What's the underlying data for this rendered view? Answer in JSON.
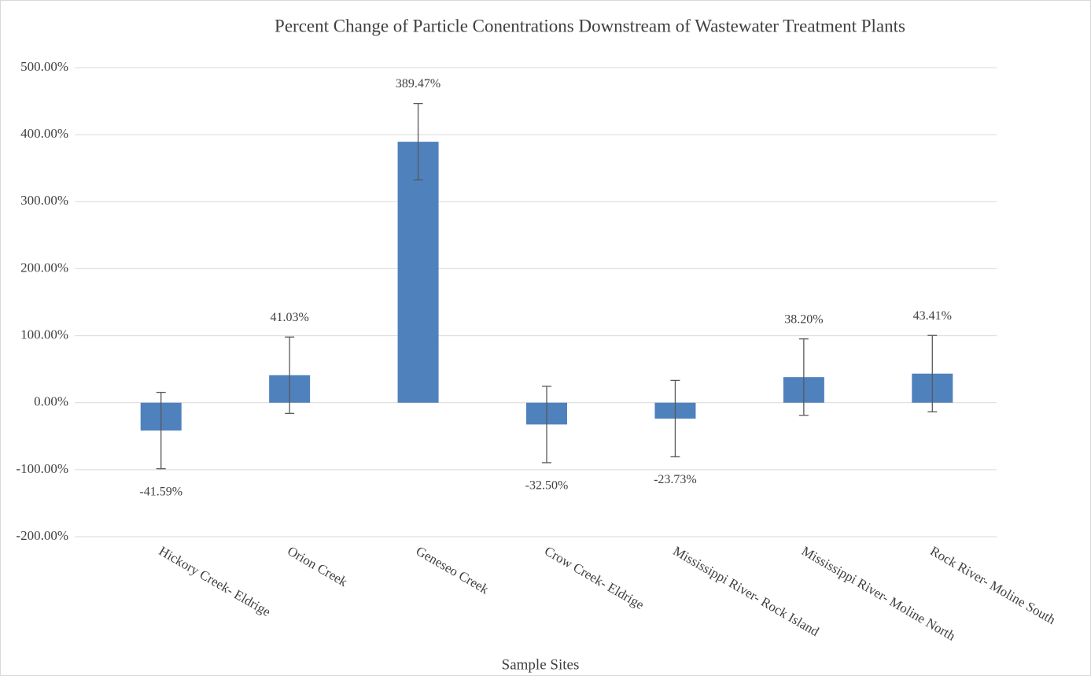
{
  "chart_data": {
    "type": "bar",
    "title": "Percent Change of Particle Conentrations Downstream of Wastewater Treatment Plants",
    "x_label": "Sample Sites",
    "categories": [
      "Hickory Creek- Eldrige",
      "Orion Creek",
      "Geneseo Creek",
      "Crow Creek- Eldrige",
      "Mississippi River- Rock Island",
      "Mississippi River- Moline North",
      "Rock River- Moline South"
    ],
    "values": [
      -41.59,
      41.03,
      389.47,
      -32.5,
      -23.73,
      38.2,
      43.41
    ],
    "value_labels": [
      "-41.59%",
      "41.03%",
      "389.47%",
      "-32.50%",
      "-23.73%",
      "38.20%",
      "43.41%"
    ],
    "errors": [
      57,
      57,
      57,
      57,
      57,
      57,
      57
    ],
    "color": "#4f81bd",
    "ylim": [
      -200,
      500
    ],
    "yticks": [
      {
        "value": -200,
        "label": "-200.00%"
      },
      {
        "value": -100,
        "label": "-100.00%"
      },
      {
        "value": 0,
        "label": "0.00%"
      },
      {
        "value": 100,
        "label": "100.00%"
      },
      {
        "value": 200,
        "label": "200.00%"
      },
      {
        "value": 300,
        "label": "300.00%"
      },
      {
        "value": 400,
        "label": "400.00%"
      },
      {
        "value": 500,
        "label": "500.00%"
      }
    ],
    "grid": true
  }
}
